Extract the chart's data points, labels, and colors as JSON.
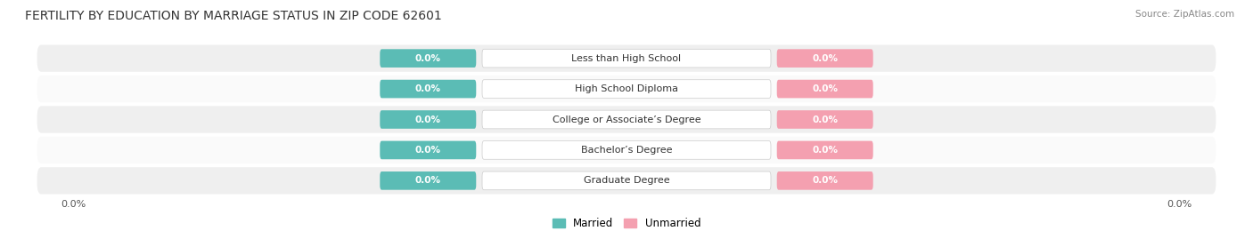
{
  "title": "FERTILITY BY EDUCATION BY MARRIAGE STATUS IN ZIP CODE 62601",
  "source": "Source: ZipAtlas.com",
  "categories": [
    "Less than High School",
    "High School Diploma",
    "College or Associate’s Degree",
    "Bachelor’s Degree",
    "Graduate Degree"
  ],
  "married_values": [
    0.0,
    0.0,
    0.0,
    0.0,
    0.0
  ],
  "unmarried_values": [
    0.0,
    0.0,
    0.0,
    0.0,
    0.0
  ],
  "married_color": "#5bbcb5",
  "unmarried_color": "#f4a0b0",
  "row_bg_colors": [
    "#efefef",
    "#fafafa"
  ],
  "label_married": "Married",
  "label_unmarried": "Unmarried",
  "title_fontsize": 10,
  "source_fontsize": 7.5,
  "value_label": "0.0%",
  "tick_label_left": "0.0%",
  "tick_label_right": "0.0%",
  "background_color": "#ffffff"
}
